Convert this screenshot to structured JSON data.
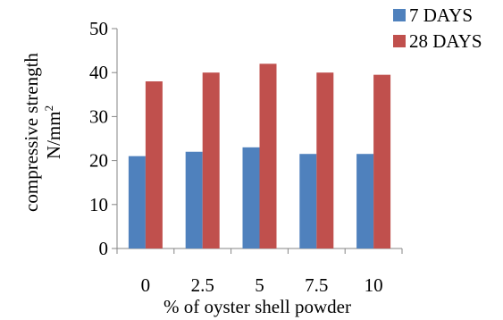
{
  "chart_data": {
    "type": "bar",
    "title": "",
    "xlabel": "% of oyster shell powder",
    "ylabel_line1": "compressive strength",
    "ylabel_line2_base": "N/mm",
    "ylabel_line2_sup": "2",
    "categories": [
      "0",
      "2.5",
      "5",
      "7.5",
      "10"
    ],
    "series": [
      {
        "name": "7 DAYS",
        "values": [
          21,
          22,
          23,
          21.5,
          21.5
        ],
        "color": "#4F81BD"
      },
      {
        "name": "28 DAYS",
        "values": [
          38,
          40,
          42,
          40,
          39.5
        ],
        "color": "#C0504D"
      }
    ],
    "ylim": [
      0,
      50
    ],
    "yticks": [
      "0",
      "10",
      "20",
      "30",
      "40",
      "50"
    ],
    "grid": false,
    "legend_position": "top-right"
  }
}
